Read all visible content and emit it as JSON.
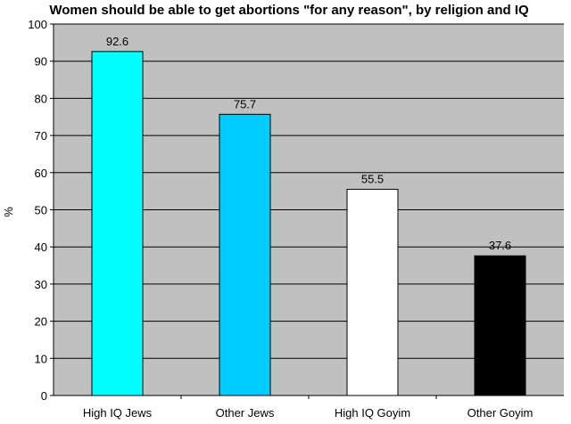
{
  "chart_data": {
    "type": "bar",
    "title": "Women should be able to get abortions \"for any reason\", by religion and IQ",
    "xlabel": "",
    "ylabel": "%",
    "ylim": [
      0,
      100
    ],
    "yticks": [
      0,
      10,
      20,
      30,
      40,
      50,
      60,
      70,
      80,
      90,
      100
    ],
    "grid": true,
    "legend": "none",
    "categories": [
      "High IQ Jews",
      "Other Jews",
      "High IQ Goyim",
      "Other Goyim"
    ],
    "values": [
      92.6,
      75.7,
      55.5,
      37.6
    ],
    "data_labels": [
      "92.6",
      "75.7",
      "55.5",
      "37.6"
    ],
    "bar_colors": [
      "#00ffff",
      "#00ccff",
      "#ffffff",
      "#000000"
    ]
  },
  "colors": {
    "plot_background": "#c0c0c0",
    "gridline": "#000000",
    "bar_outline": "#000000"
  }
}
